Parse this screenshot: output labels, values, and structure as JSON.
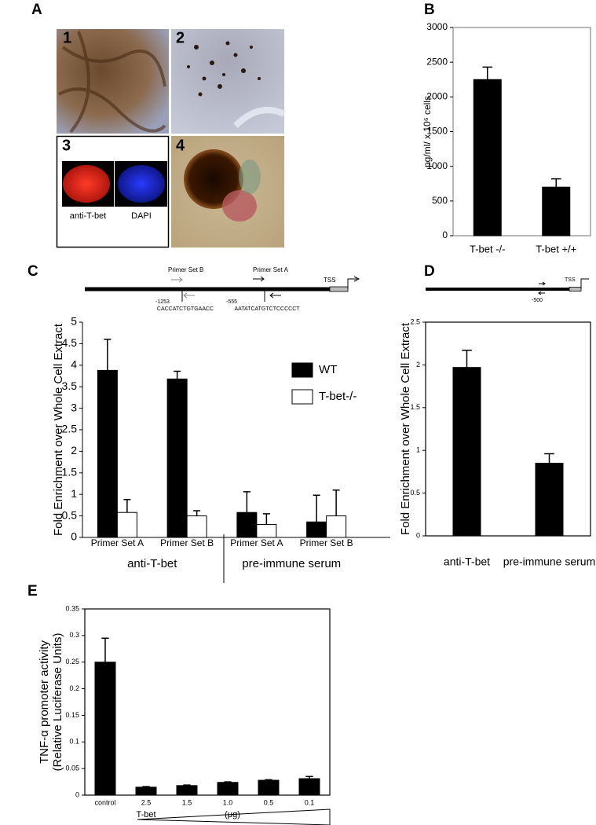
{
  "figure": {
    "panel_letters": [
      "A",
      "B",
      "C",
      "D",
      "E"
    ],
    "panel_a": {
      "numbers": [
        "1",
        "2",
        "3",
        "4"
      ],
      "captions": [
        "anti-T-bet",
        "DAPI"
      ]
    },
    "diagram_c": {
      "tss": "TSS",
      "primers": [
        "Primer Set B",
        "Primer Set A"
      ],
      "positions": [
        "-1253",
        "-555"
      ],
      "sequences": [
        "CACCATCTGTGAACC",
        "AATATCATGTCTCCCCCT"
      ]
    },
    "diagram_d": {
      "tss": "TSS",
      "position": "-500"
    }
  },
  "chart_data": [
    {
      "type": "bar",
      "ylabel": [
        "pg/ml/ x 10⁶ cells"
      ],
      "categories": [
        "T-bet -/-",
        "T-bet +/+"
      ],
      "values": [
        2250,
        700
      ],
      "errors": [
        180,
        120
      ],
      "color": "#000000",
      "ylim": [
        0,
        3000
      ],
      "yticks": [
        0,
        500,
        1000,
        1500,
        2000,
        2500,
        3000
      ],
      "frame": true
    },
    {
      "type": "bar",
      "ylabel": [
        "Fold Enrichment  over Whole Cell Extract"
      ],
      "categories": [
        "Primer Set A",
        "Primer Set B",
        "Primer Set A",
        "Primer Set B"
      ],
      "group_labels": [
        "anti-T-bet",
        "pre-immune serum"
      ],
      "series": [
        {
          "name": "WT",
          "color": "#000000",
          "values": [
            3.88,
            3.68,
            0.58,
            0.36
          ],
          "errors": [
            0.72,
            0.18,
            0.48,
            0.62
          ]
        },
        {
          "name": "T-bet-/-",
          "color": "#ffffff",
          "values": [
            0.58,
            0.5,
            0.3,
            0.5
          ],
          "errors": [
            0.3,
            0.12,
            0.25,
            0.6
          ]
        }
      ],
      "ylim": [
        0,
        5
      ],
      "yticks": [
        0,
        0.5,
        1,
        1.5,
        2,
        2.5,
        3,
        3.5,
        4,
        4.5,
        5
      ],
      "frame": false,
      "legend": "upper right"
    },
    {
      "type": "bar",
      "ylabel": [
        "Fold Enrichment  over Whole Cell Extract"
      ],
      "categories": [
        "anti-T-bet",
        "pre-immune serum"
      ],
      "values": [
        1.97,
        0.85
      ],
      "errors": [
        0.2,
        0.11
      ],
      "color": "#000000",
      "ylim": [
        0,
        2.5
      ],
      "yticks": [
        0,
        0.5,
        1,
        1.5,
        2,
        2.5
      ],
      "frame": true
    },
    {
      "type": "bar",
      "ylabel": [
        "TNF-α promoter activity",
        "(Relative Luciferase Units)"
      ],
      "categories": [
        "control",
        "2.5",
        "1.5",
        "1.0",
        "0.5",
        "0.1"
      ],
      "annotations": [
        "T-bet",
        "(μg)"
      ],
      "values": [
        0.25,
        0.015,
        0.018,
        0.024,
        0.028,
        0.031
      ],
      "errors": [
        0.045,
        0.001,
        0.001,
        0.001,
        0.001,
        0.004
      ],
      "color": "#000000",
      "ylim": [
        0,
        0.35
      ],
      "yticks": [
        0,
        0.05,
        0.1,
        0.15,
        0.2,
        0.25,
        0.3,
        0.35
      ],
      "frame": true
    }
  ]
}
